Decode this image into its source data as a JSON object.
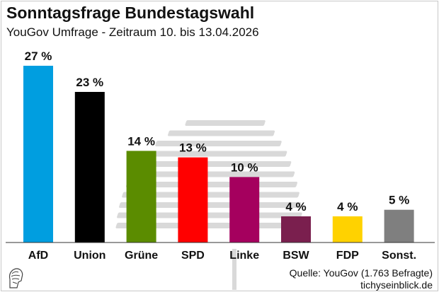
{
  "header": {
    "title": "Sonntagsfrage Bundestagswahl",
    "subtitle": "YouGov Umfrage - Zeitraum 10. bis 13.04.2026"
  },
  "footer": {
    "source": "Quelle: YouGov (1.763 Befragte)",
    "site": "tichyseinblick.de"
  },
  "icons": {
    "logo": "tichys-einblick-logo-icon",
    "watermark": "bundestag-dome-watermark"
  },
  "chart_data": {
    "type": "bar",
    "title": "Sonntagsfrage Bundestagswahl",
    "subtitle": "YouGov Umfrage - Zeitraum 10. bis 13.04.2026",
    "xlabel": "",
    "ylabel": "",
    "ylim": [
      0,
      27
    ],
    "grid": false,
    "legend": "none",
    "categories": [
      "AfD",
      "Union",
      "Grüne",
      "SPD",
      "Linke",
      "BSW",
      "FDP",
      "Sonst."
    ],
    "values": [
      27,
      23,
      14,
      13,
      10,
      4,
      4,
      5
    ],
    "value_labels": [
      "27 %",
      "23 %",
      "14 %",
      "13 %",
      "10 %",
      "4 %",
      "4 %",
      "5 %"
    ],
    "colors": [
      "#009EE0",
      "#000000",
      "#5B8C00",
      "#FF0000",
      "#A5005E",
      "#7A1F4E",
      "#FFD200",
      "#7F7F7F"
    ]
  }
}
